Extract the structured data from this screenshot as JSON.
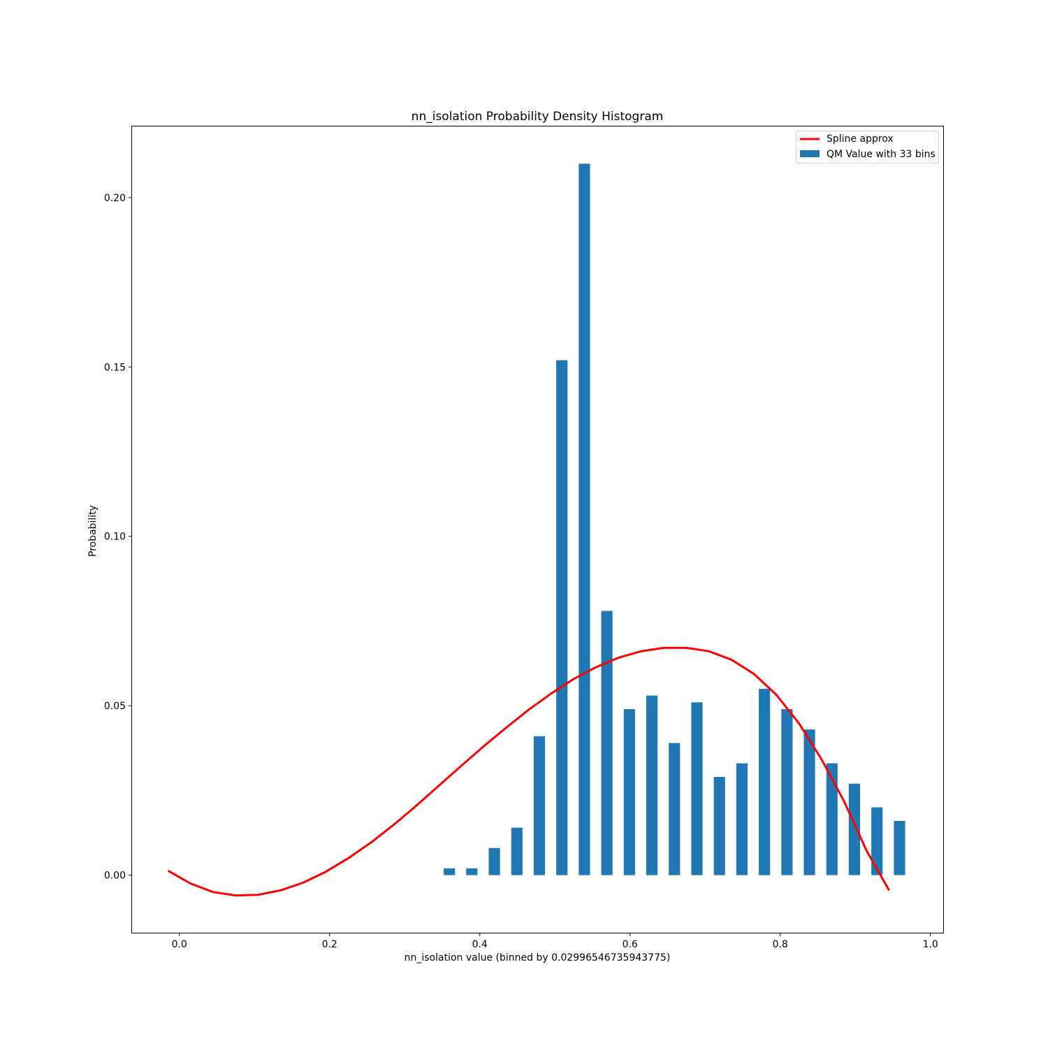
{
  "chart_data": {
    "type": "bar",
    "title": "nn_isolation Probability Density Histogram",
    "xlabel": "nn_isolation value (binned by 0.02996546735943775)",
    "ylabel": "Probability",
    "xlim": [
      -0.063,
      1.017
    ],
    "ylim": [
      -0.017,
      0.221
    ],
    "xticks": [
      0.0,
      0.2,
      0.4,
      0.6,
      0.8,
      1.0
    ],
    "xtick_labels": [
      "0.0",
      "0.2",
      "0.4",
      "0.6",
      "0.8",
      "1.0"
    ],
    "yticks": [
      0.0,
      0.05,
      0.1,
      0.15,
      0.2
    ],
    "ytick_labels": [
      "0.00",
      "0.05",
      "0.10",
      "0.15",
      "0.20"
    ],
    "grid": false,
    "legend_position": "top-right",
    "colors": {
      "bars": "#1f77b4",
      "spline": "#ff0000"
    },
    "series": [
      {
        "name": "QM Value with 33 bins",
        "type": "bar",
        "x": [
          0.3595,
          0.3894,
          0.4194,
          0.4494,
          0.4793,
          0.5093,
          0.5393,
          0.5692,
          0.5992,
          0.6292,
          0.6591,
          0.6891,
          0.7191,
          0.749,
          0.779,
          0.809,
          0.8389,
          0.8689,
          0.8988,
          0.9288,
          0.9588
        ],
        "values": [
          0.002,
          0.002,
          0.008,
          0.014,
          0.041,
          0.152,
          0.21,
          0.078,
          0.049,
          0.053,
          0.039,
          0.051,
          0.029,
          0.033,
          0.055,
          0.049,
          0.043,
          0.033,
          0.027,
          0.02,
          0.016
        ],
        "bar_width": 0.015
      },
      {
        "name": "Spline approx",
        "type": "line",
        "x": [
          -0.015,
          0.015,
          0.045,
          0.075,
          0.105,
          0.135,
          0.165,
          0.195,
          0.225,
          0.255,
          0.285,
          0.315,
          0.345,
          0.375,
          0.405,
          0.435,
          0.465,
          0.495,
          0.525,
          0.555,
          0.585,
          0.615,
          0.645,
          0.675,
          0.705,
          0.735,
          0.765,
          0.795,
          0.825,
          0.855,
          0.885,
          0.915,
          0.945
        ],
        "values": [
          0.0013,
          -0.0025,
          -0.005,
          -0.006,
          -0.0058,
          -0.0045,
          -0.0022,
          0.001,
          0.005,
          0.0096,
          0.0148,
          0.0204,
          0.0263,
          0.0322,
          0.038,
          0.0435,
          0.0488,
          0.0536,
          0.0579,
          0.0614,
          0.0642,
          0.0661,
          0.0671,
          0.0671,
          0.0661,
          0.0636,
          0.0594,
          0.0532,
          0.0448,
          0.0342,
          0.0218,
          0.0072,
          -0.0045
        ]
      }
    ]
  }
}
